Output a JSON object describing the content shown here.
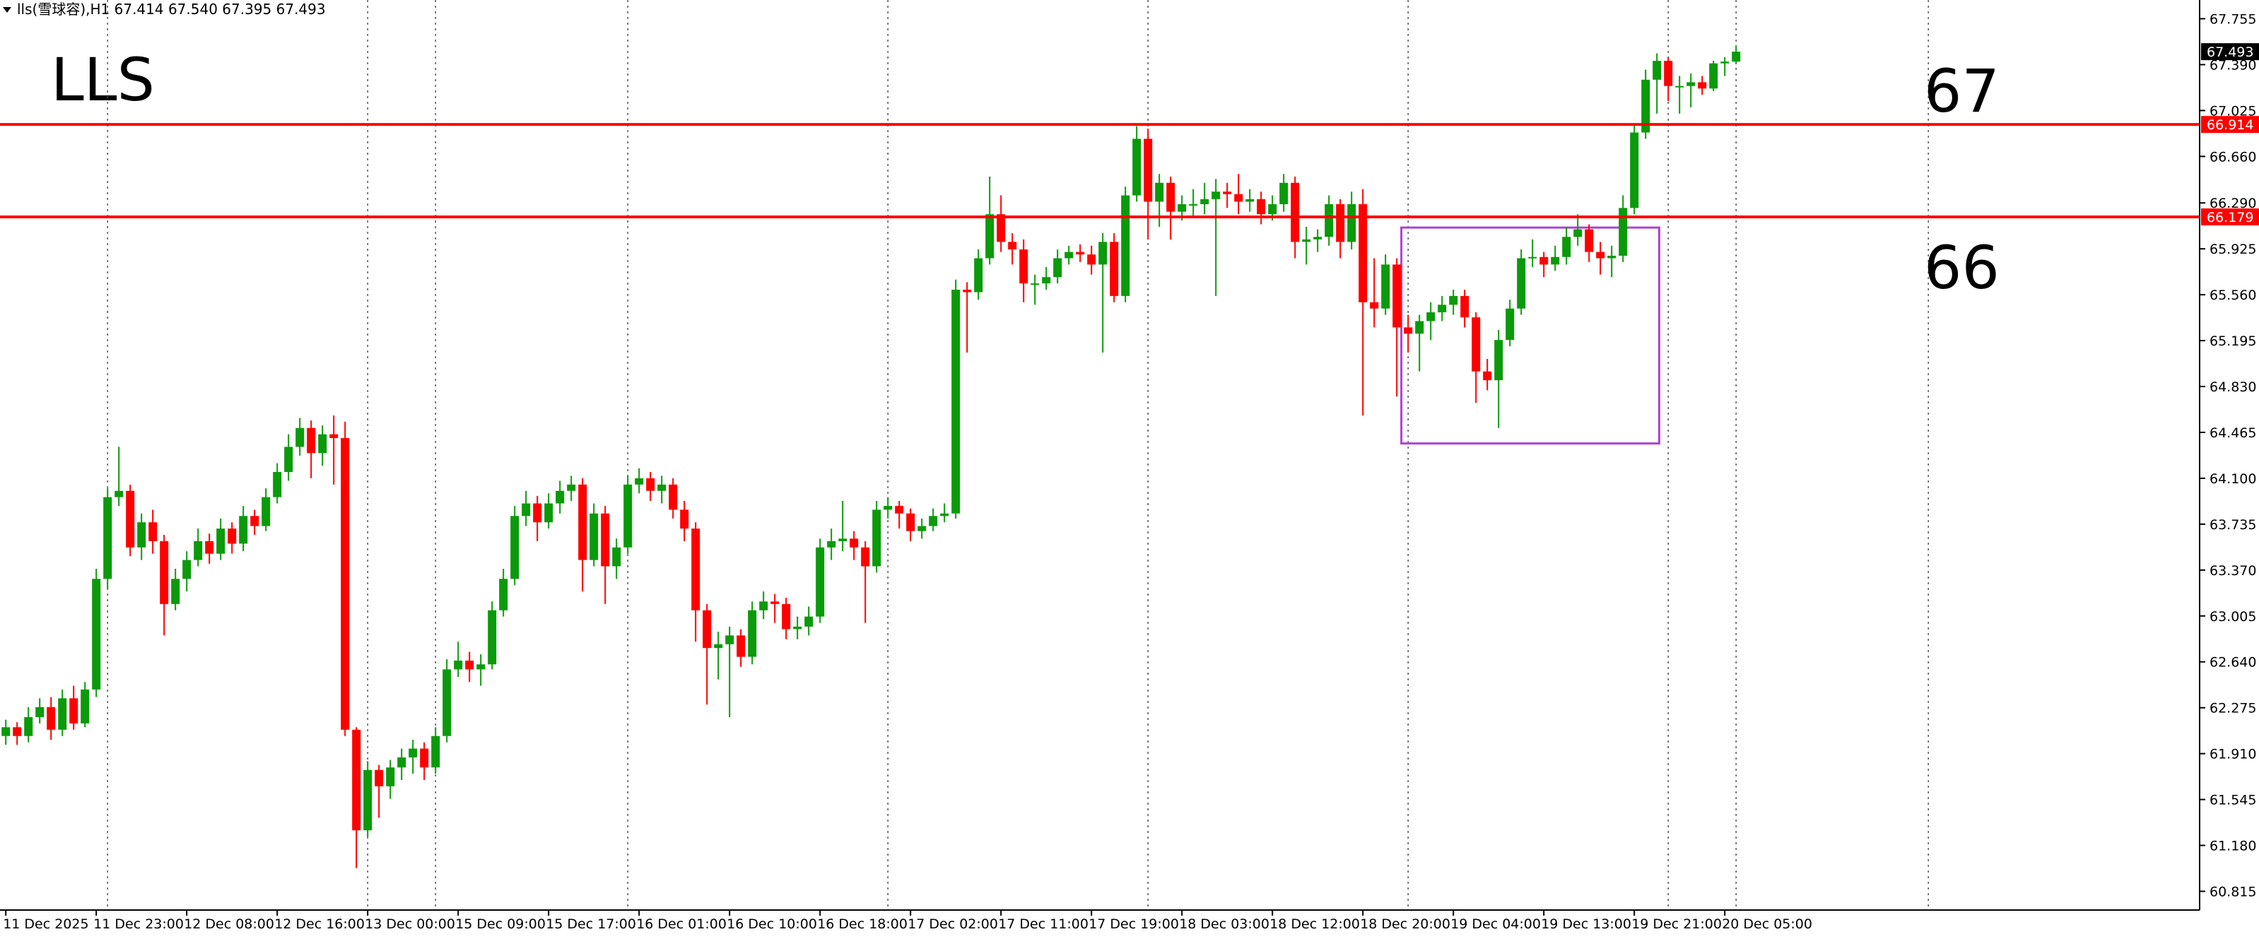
{
  "chart_data": {
    "type": "candlestick",
    "header": "lls(雪球容),H1  67.414 67.540 67.395 67.493",
    "title": "LLS",
    "annotations": [
      "67",
      "66"
    ],
    "up_color": "#0a9a0a",
    "down_color": "#ff0000",
    "ylim": [
      60.666,
      67.904
    ],
    "yticks": [
      {
        "value": 67.755,
        "label": "67.755"
      },
      {
        "value": 67.39,
        "label": "67.390"
      },
      {
        "value": 67.025,
        "label": "67.025"
      },
      {
        "value": 66.66,
        "label": "66.660"
      },
      {
        "value": 66.29,
        "label": "66.290"
      },
      {
        "value": 65.925,
        "label": "65.925"
      },
      {
        "value": 65.56,
        "label": "65.560"
      },
      {
        "value": 65.195,
        "label": "65.195"
      },
      {
        "value": 64.83,
        "label": "64.830"
      },
      {
        "value": 64.465,
        "label": "64.465"
      },
      {
        "value": 64.1,
        "label": "64.100"
      },
      {
        "value": 63.735,
        "label": "63.735"
      },
      {
        "value": 63.37,
        "label": "63.370"
      },
      {
        "value": 63.005,
        "label": "63.005"
      },
      {
        "value": 62.64,
        "label": "62.640"
      },
      {
        "value": 62.275,
        "label": "62.275"
      },
      {
        "value": 61.91,
        "label": "61.910"
      },
      {
        "value": 61.545,
        "label": "61.545"
      },
      {
        "value": 61.18,
        "label": "61.180"
      },
      {
        "value": 60.815,
        "label": "60.815"
      }
    ],
    "xticks": [
      {
        "value": 0,
        "label": "11 Dec 2025"
      },
      {
        "value": 8,
        "label": "11 Dec 23:00"
      },
      {
        "value": 16,
        "label": "12 Dec 08:00"
      },
      {
        "value": 24,
        "label": "12 Dec 16:00"
      },
      {
        "value": 32,
        "label": "13 Dec 00:00"
      },
      {
        "value": 40,
        "label": "15 Dec 09:00"
      },
      {
        "value": 48,
        "label": "15 Dec 17:00"
      },
      {
        "value": 56,
        "label": "16 Dec 01:00"
      },
      {
        "value": 64,
        "label": "16 Dec 10:00"
      },
      {
        "value": 72,
        "label": "16 Dec 18:00"
      },
      {
        "value": 80,
        "label": "17 Dec 02:00"
      },
      {
        "value": 88,
        "label": "17 Dec 11:00"
      },
      {
        "value": 96,
        "label": "17 Dec 19:00"
      },
      {
        "value": 104,
        "label": "18 Dec 03:00"
      },
      {
        "value": 112,
        "label": "18 Dec 12:00"
      },
      {
        "value": 120,
        "label": "18 Dec 20:00"
      },
      {
        "value": 128,
        "label": "19 Dec 04:00"
      },
      {
        "value": 136,
        "label": "19 Dec 13:00"
      },
      {
        "value": 144,
        "label": "19 Dec 21:00"
      },
      {
        "value": 152,
        "label": "20 Dec 05:00"
      }
    ],
    "separators": [
      9,
      32,
      38,
      55,
      78,
      101,
      124,
      147,
      153,
      170
    ],
    "levels": [
      {
        "value": 66.914,
        "color": "#ff0000"
      },
      {
        "value": 66.179,
        "color": "#ff0000"
      }
    ],
    "last_price": 67.493,
    "rectangle": {
      "x": [
        123.4,
        146.2
      ],
      "y": [
        66.094,
        64.377
      ],
      "color": "#b040d0"
    },
    "candles": [
      [
        62.05,
        62.18,
        61.98,
        62.12
      ],
      [
        62.12,
        62.16,
        61.98,
        62.05
      ],
      [
        62.05,
        62.28,
        62.0,
        62.2
      ],
      [
        62.2,
        62.35,
        62.15,
        62.28
      ],
      [
        62.28,
        62.36,
        62.02,
        62.1
      ],
      [
        62.1,
        62.42,
        62.05,
        62.35
      ],
      [
        62.35,
        62.45,
        62.1,
        62.15
      ],
      [
        62.15,
        62.48,
        62.12,
        62.42
      ],
      [
        62.42,
        63.38,
        62.36,
        63.3
      ],
      [
        63.3,
        64.02,
        63.22,
        63.95
      ],
      [
        63.95,
        64.35,
        63.88,
        64.0
      ],
      [
        64.0,
        64.05,
        63.48,
        63.55
      ],
      [
        63.55,
        63.82,
        63.45,
        63.75
      ],
      [
        63.75,
        63.85,
        63.5,
        63.6
      ],
      [
        63.6,
        63.65,
        62.85,
        63.1
      ],
      [
        63.1,
        63.38,
        63.05,
        63.3
      ],
      [
        63.3,
        63.52,
        63.2,
        63.45
      ],
      [
        63.45,
        63.7,
        63.4,
        63.6
      ],
      [
        63.6,
        63.66,
        63.42,
        63.5
      ],
      [
        63.5,
        63.78,
        63.45,
        63.7
      ],
      [
        63.7,
        63.75,
        63.5,
        63.58
      ],
      [
        63.58,
        63.88,
        63.52,
        63.8
      ],
      [
        63.8,
        63.85,
        63.65,
        63.72
      ],
      [
        63.72,
        64.02,
        63.68,
        63.95
      ],
      [
        63.95,
        64.22,
        63.9,
        64.15
      ],
      [
        64.15,
        64.45,
        64.08,
        64.35
      ],
      [
        64.35,
        64.58,
        64.28,
        64.5
      ],
      [
        64.5,
        64.56,
        64.1,
        64.3
      ],
      [
        64.3,
        64.52,
        64.2,
        64.45
      ],
      [
        64.45,
        64.6,
        64.05,
        64.42
      ],
      [
        64.42,
        64.55,
        62.05,
        62.1
      ],
      [
        62.1,
        62.12,
        61.0,
        61.3
      ],
      [
        61.3,
        61.85,
        61.25,
        61.78
      ],
      [
        61.78,
        61.82,
        61.4,
        61.65
      ],
      [
        61.65,
        61.86,
        61.55,
        61.8
      ],
      [
        61.8,
        61.95,
        61.7,
        61.88
      ],
      [
        61.88,
        62.02,
        61.75,
        61.95
      ],
      [
        61.95,
        62.0,
        61.7,
        61.8
      ],
      [
        61.8,
        62.12,
        61.75,
        62.05
      ],
      [
        62.05,
        62.66,
        62.0,
        62.58
      ],
      [
        62.58,
        62.8,
        62.52,
        62.65
      ],
      [
        62.65,
        62.72,
        62.48,
        62.58
      ],
      [
        62.58,
        62.7,
        62.45,
        62.62
      ],
      [
        62.62,
        63.12,
        62.58,
        63.05
      ],
      [
        63.05,
        63.38,
        63.0,
        63.3
      ],
      [
        63.3,
        63.88,
        63.25,
        63.8
      ],
      [
        63.8,
        64.0,
        63.72,
        63.9
      ],
      [
        63.9,
        63.96,
        63.6,
        63.75
      ],
      [
        63.75,
        63.98,
        63.7,
        63.9
      ],
      [
        63.9,
        64.08,
        63.82,
        64.0
      ],
      [
        64.0,
        64.12,
        63.92,
        64.05
      ],
      [
        64.05,
        64.1,
        63.2,
        63.45
      ],
      [
        63.45,
        63.9,
        63.4,
        63.82
      ],
      [
        63.82,
        63.88,
        63.1,
        63.4
      ],
      [
        63.4,
        63.62,
        63.3,
        63.55
      ],
      [
        63.55,
        64.12,
        63.5,
        64.05
      ],
      [
        64.05,
        64.18,
        63.98,
        64.1
      ],
      [
        64.1,
        64.15,
        63.92,
        64.0
      ],
      [
        64.0,
        64.12,
        63.9,
        64.05
      ],
      [
        64.05,
        64.1,
        63.78,
        63.85
      ],
      [
        63.85,
        63.92,
        63.6,
        63.7
      ],
      [
        63.7,
        63.75,
        62.8,
        63.05
      ],
      [
        63.05,
        63.1,
        62.3,
        62.75
      ],
      [
        62.75,
        62.88,
        62.5,
        62.78
      ],
      [
        62.78,
        62.92,
        62.2,
        62.85
      ],
      [
        62.85,
        62.9,
        62.6,
        62.68
      ],
      [
        62.68,
        63.12,
        62.62,
        63.05
      ],
      [
        63.05,
        63.2,
        62.98,
        63.12
      ],
      [
        63.12,
        63.18,
        62.95,
        63.1
      ],
      [
        63.1,
        63.15,
        62.82,
        62.9
      ],
      [
        62.9,
        63.0,
        62.82,
        62.92
      ],
      [
        62.92,
        63.08,
        62.85,
        63.0
      ],
      [
        63.0,
        63.62,
        62.95,
        63.55
      ],
      [
        63.55,
        63.7,
        63.45,
        63.6
      ],
      [
        63.6,
        63.92,
        63.52,
        63.62
      ],
      [
        63.62,
        63.68,
        63.45,
        63.55
      ],
      [
        63.55,
        63.6,
        62.95,
        63.4
      ],
      [
        63.4,
        63.92,
        63.35,
        63.85
      ],
      [
        63.85,
        63.95,
        63.78,
        63.88
      ],
      [
        63.88,
        63.92,
        63.7,
        63.82
      ],
      [
        63.82,
        63.86,
        63.6,
        63.68
      ],
      [
        63.68,
        63.78,
        63.62,
        63.72
      ],
      [
        63.72,
        63.86,
        63.68,
        63.8
      ],
      [
        63.8,
        63.9,
        63.75,
        63.82
      ],
      [
        63.82,
        65.68,
        63.78,
        65.6
      ],
      [
        65.6,
        65.66,
        65.1,
        65.58
      ],
      [
        65.58,
        65.92,
        65.52,
        65.85
      ],
      [
        65.85,
        66.5,
        65.8,
        66.2
      ],
      [
        66.2,
        66.35,
        65.9,
        65.98
      ],
      [
        65.98,
        66.05,
        65.8,
        65.92
      ],
      [
        65.92,
        66.0,
        65.5,
        65.65
      ],
      [
        65.65,
        65.72,
        65.48,
        65.65
      ],
      [
        65.65,
        65.78,
        65.6,
        65.7
      ],
      [
        65.7,
        65.92,
        65.65,
        65.85
      ],
      [
        65.85,
        65.95,
        65.8,
        65.9
      ],
      [
        65.9,
        65.96,
        65.82,
        65.88
      ],
      [
        65.88,
        65.95,
        65.72,
        65.8
      ],
      [
        65.8,
        66.05,
        65.1,
        65.98
      ],
      [
        65.98,
        66.05,
        65.5,
        65.55
      ],
      [
        65.55,
        66.42,
        65.5,
        66.35
      ],
      [
        66.35,
        66.9,
        66.3,
        66.8
      ],
      [
        66.8,
        66.88,
        66.0,
        66.3
      ],
      [
        66.3,
        66.52,
        66.1,
        66.45
      ],
      [
        66.45,
        66.5,
        66.0,
        66.22
      ],
      [
        66.22,
        66.35,
        66.15,
        66.28
      ],
      [
        66.28,
        66.4,
        66.18,
        66.28
      ],
      [
        66.28,
        66.45,
        66.2,
        66.32
      ],
      [
        66.32,
        66.48,
        65.55,
        66.38
      ],
      [
        66.38,
        66.45,
        66.25,
        66.36
      ],
      [
        66.36,
        66.52,
        66.2,
        66.3
      ],
      [
        66.3,
        66.4,
        66.22,
        66.32
      ],
      [
        66.32,
        66.38,
        66.12,
        66.2
      ],
      [
        66.2,
        66.35,
        66.15,
        66.28
      ],
      [
        66.28,
        66.52,
        66.22,
        66.45
      ],
      [
        66.45,
        66.5,
        65.85,
        65.98
      ],
      [
        65.98,
        66.1,
        65.8,
        66.0
      ],
      [
        66.0,
        66.08,
        65.9,
        66.02
      ],
      [
        66.02,
        66.35,
        65.95,
        66.28
      ],
      [
        66.28,
        66.32,
        65.85,
        65.98
      ],
      [
        65.98,
        66.38,
        65.92,
        66.28
      ],
      [
        66.28,
        66.4,
        64.6,
        65.5
      ],
      [
        65.5,
        65.85,
        65.3,
        65.45
      ],
      [
        65.45,
        65.88,
        65.4,
        65.8
      ],
      [
        65.8,
        65.85,
        64.75,
        65.3
      ],
      [
        65.3,
        65.4,
        65.1,
        65.25
      ],
      [
        65.25,
        65.4,
        64.95,
        65.35
      ],
      [
        65.35,
        65.5,
        65.2,
        65.42
      ],
      [
        65.42,
        65.55,
        65.35,
        65.48
      ],
      [
        65.48,
        65.6,
        65.4,
        65.55
      ],
      [
        65.55,
        65.6,
        65.3,
        65.38
      ],
      [
        65.38,
        65.42,
        64.7,
        64.95
      ],
      [
        64.95,
        65.05,
        64.8,
        64.88
      ],
      [
        64.88,
        65.28,
        64.5,
        65.2
      ],
      [
        65.2,
        65.52,
        65.15,
        65.45
      ],
      [
        65.45,
        65.92,
        65.4,
        65.85
      ],
      [
        65.85,
        66.0,
        65.78,
        65.86
      ],
      [
        65.86,
        65.9,
        65.7,
        65.8
      ],
      [
        65.8,
        65.95,
        65.75,
        65.86
      ],
      [
        65.86,
        66.1,
        65.8,
        66.02
      ],
      [
        66.02,
        66.2,
        65.95,
        66.08
      ],
      [
        66.08,
        66.12,
        65.82,
        65.9
      ],
      [
        65.9,
        65.98,
        65.72,
        65.85
      ],
      [
        65.85,
        65.95,
        65.7,
        65.87
      ],
      [
        65.87,
        66.35,
        65.82,
        66.25
      ],
      [
        66.25,
        66.92,
        66.2,
        66.85
      ],
      [
        66.85,
        67.35,
        66.8,
        67.27
      ],
      [
        67.27,
        67.48,
        67.0,
        67.42
      ],
      [
        67.42,
        67.45,
        67.1,
        67.22
      ],
      [
        67.22,
        67.3,
        67.0,
        67.22
      ],
      [
        67.22,
        67.32,
        67.05,
        67.25
      ],
      [
        67.25,
        67.3,
        67.15,
        67.2
      ],
      [
        67.2,
        67.42,
        67.18,
        67.4
      ],
      [
        67.4,
        67.45,
        67.3,
        67.414
      ],
      [
        67.414,
        67.54,
        67.395,
        67.493
      ]
    ]
  }
}
